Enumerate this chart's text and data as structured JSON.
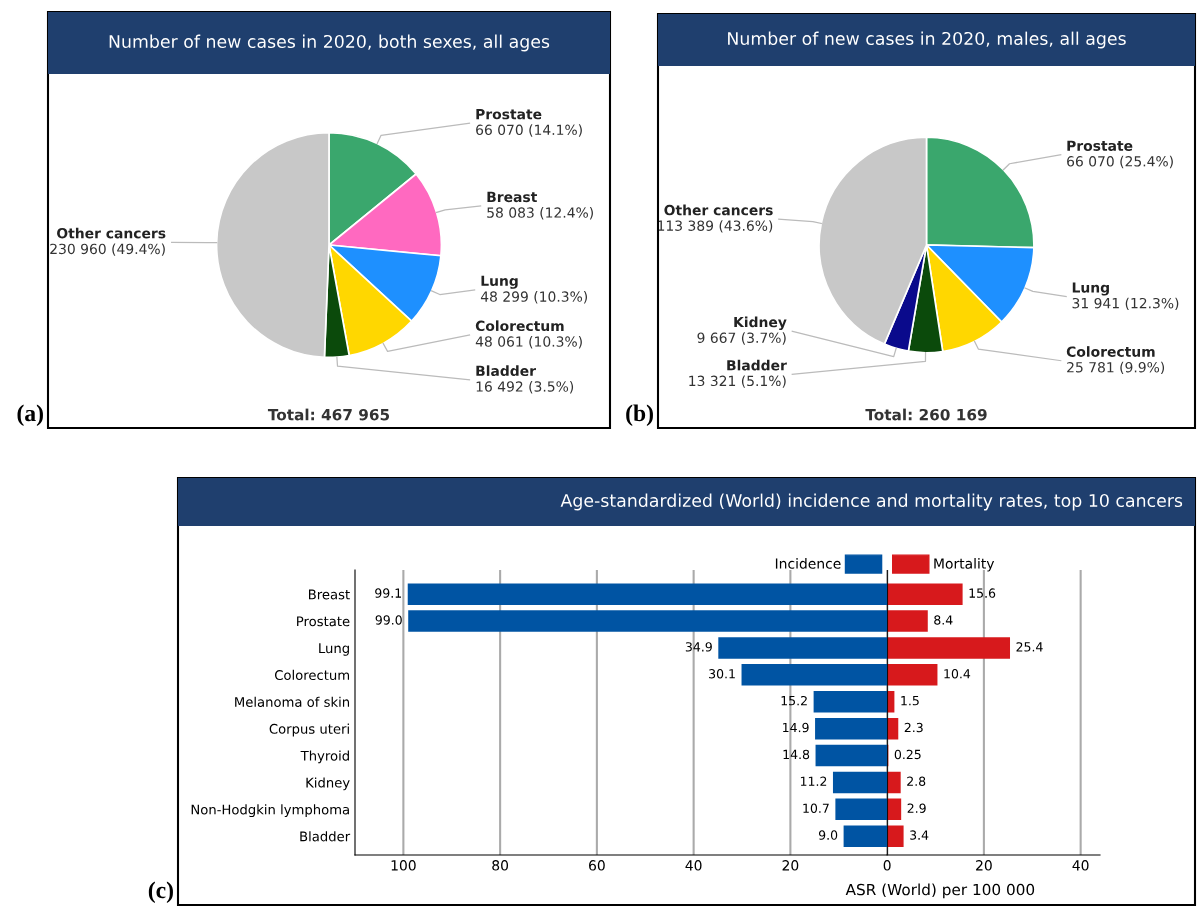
{
  "chart_data": [
    {
      "type": "pie",
      "title": "Number of new cases in 2020, both sexes, all ages",
      "categories": [
        "Prostate",
        "Breast",
        "Lung",
        "Colorectum",
        "Bladder",
        "Other cancers"
      ],
      "values": [
        66070,
        58083,
        48299,
        48061,
        16492,
        230960
      ],
      "colors": [
        "#3aa76d",
        "#ff69c0",
        "#1e90ff",
        "#ffd700",
        "#0b4a0b",
        "#c8c8c8"
      ],
      "value_labels": [
        "66 070 (14.1%)",
        "58 083 (12.4%)",
        "48 299 (10.3%)",
        "48 061 (10.3%)",
        "16 492 (3.5%)",
        "230 960 (49.4%)"
      ],
      "annotations": [
        "Total: 467 965",
        "(a)"
      ]
    },
    {
      "type": "pie",
      "title": "Number of new cases in 2020, males, all ages",
      "categories": [
        "Prostate",
        "Lung",
        "Colorectum",
        "Bladder",
        "Kidney",
        "Other cancers"
      ],
      "values": [
        66070,
        31941,
        25781,
        13321,
        9667,
        113389
      ],
      "colors": [
        "#3aa76d",
        "#1e90ff",
        "#ffd700",
        "#0b4a0b",
        "#0a0a8c",
        "#c8c8c8"
      ],
      "value_labels": [
        "66 070 (25.4%)",
        "31 941 (12.3%)",
        "25 781 (9.9%)",
        "13 321 (5.1%)",
        "9 667 (3.7%)",
        "113 389 (43.6%)"
      ],
      "annotations": [
        "Total: 260 169",
        "(b)"
      ]
    },
    {
      "type": "bar",
      "orientation": "horizontal",
      "title": "Age-standardized (World) incidence and mortality rates, top 10 cancers",
      "categories": [
        "Breast",
        "Prostate",
        "Lung",
        "Colorectum",
        "Melanoma of skin",
        "Corpus uteri",
        "Thyroid",
        "Kidney",
        "Non-Hodgkin lymphoma",
        "Bladder"
      ],
      "series": [
        {
          "name": "Incidence",
          "color": "#0054a3",
          "values": [
            99.1,
            99.0,
            34.9,
            30.1,
            15.2,
            14.9,
            14.8,
            11.2,
            10.7,
            9.0
          ],
          "value_labels": [
            "99.1",
            "99.0",
            "34.9",
            "30.1",
            "15.2",
            "14.9",
            "14.8",
            "11.2",
            "10.7",
            "9.0"
          ]
        }
      ],
      "xlim": [
        110,
        0
      ],
      "xticks": [
        100,
        80,
        60,
        40,
        20,
        0
      ],
      "grid": "x",
      "legend": "top right",
      "annotations": [
        "(c)"
      ]
    },
    {
      "type": "bar",
      "orientation": "horizontal",
      "categories": [
        null,
        null,
        null,
        null,
        null,
        null,
        null,
        null,
        null,
        null
      ],
      "series": [
        {
          "name": "Mortality",
          "color": "#d7191c",
          "values": [
            15.6,
            8.4,
            25.4,
            10.4,
            1.5,
            2.3,
            0.25,
            2.8,
            2.9,
            3.4
          ],
          "value_labels": [
            "15.6",
            "8.4",
            "25.4",
            "10.4",
            "1.5",
            "2.3",
            "0.25",
            "2.8",
            "2.9",
            "3.4"
          ]
        }
      ],
      "xlim": [
        0,
        44
      ],
      "xticks": [
        {
          "value": 0,
          "label": null
        },
        20,
        40
      ],
      "tick_labels": "x",
      "xlabel": "ASR (World) per 100 000",
      "grid": "x",
      "legend": "top left"
    }
  ]
}
